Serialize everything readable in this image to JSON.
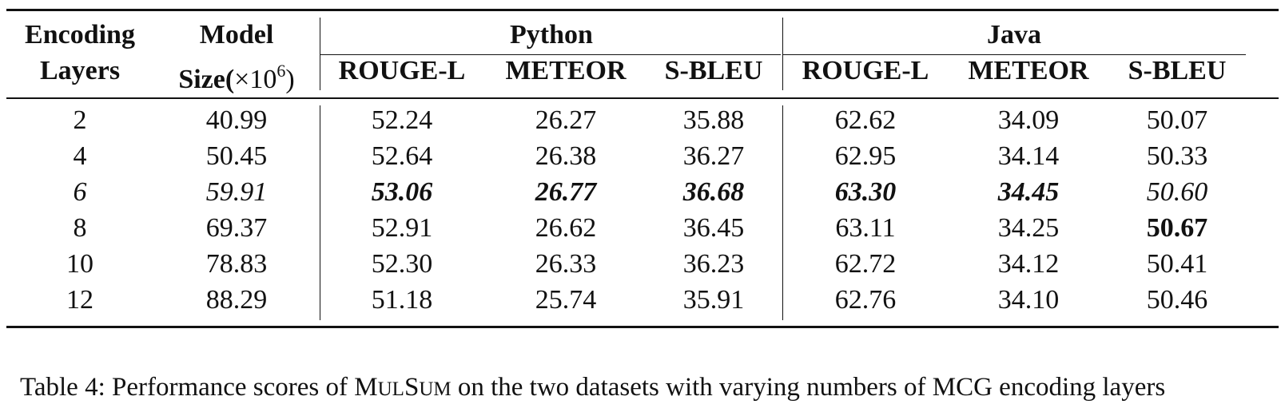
{
  "table": {
    "header_top": {
      "col1": "Encoding",
      "col2": "Model",
      "python": "Python",
      "java": "Java"
    },
    "header_bottom": {
      "col1": "Layers",
      "col2_prefix": "Size(",
      "col2_times": "×10",
      "col2_exp": "6",
      "col2_suffix": ")",
      "metrics": [
        "ROUGE-L",
        "METEOR",
        "S-BLEU",
        "ROUGE-L",
        "METEOR",
        "S-BLEU"
      ]
    },
    "rows": [
      {
        "layers": "2",
        "size": "40.99",
        "vals": [
          "52.24",
          "26.27",
          "35.88",
          "62.62",
          "34.09",
          "50.07"
        ]
      },
      {
        "layers": "4",
        "size": "50.45",
        "vals": [
          "52.64",
          "26.38",
          "36.27",
          "62.95",
          "34.14",
          "50.33"
        ]
      },
      {
        "layers": "6",
        "size": "59.91",
        "vals": [
          "53.06",
          "26.77",
          "36.68",
          "63.30",
          "34.45",
          "50.60"
        ]
      },
      {
        "layers": "8",
        "size": "69.37",
        "vals": [
          "52.91",
          "26.62",
          "36.45",
          "63.11",
          "34.25",
          "50.67"
        ]
      },
      {
        "layers": "10",
        "size": "78.83",
        "vals": [
          "52.30",
          "26.33",
          "36.23",
          "62.72",
          "34.12",
          "50.41"
        ]
      },
      {
        "layers": "12",
        "size": "88.29",
        "vals": [
          "51.18",
          "25.74",
          "35.91",
          "62.76",
          "34.10",
          "50.46"
        ]
      }
    ]
  },
  "caption": {
    "prefix": "Table 4: Performance scores of ",
    "model_M": "M",
    "model_UL": "UL",
    "model_S": "S",
    "model_UM": "UM",
    "suffix": " on the two datasets with varying numbers of MCG encoding layers"
  }
}
